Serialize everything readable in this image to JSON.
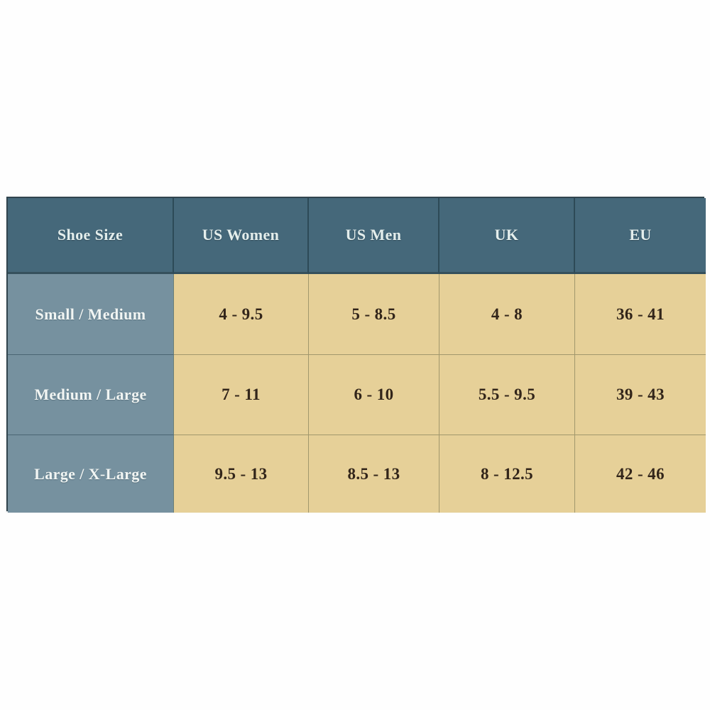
{
  "table": {
    "columns": [
      "Shoe Size",
      "US Women",
      "US Men",
      "UK",
      "EU"
    ],
    "rows": [
      {
        "label": "Small / Medium",
        "values": [
          "4 - 9.5",
          "5 - 8.5",
          "4 - 8",
          "36 - 41"
        ]
      },
      {
        "label": "Medium / Large",
        "values": [
          "7 - 11",
          "6 - 10",
          "5.5 - 9.5",
          "39 - 43"
        ]
      },
      {
        "label": "Large / X-Large",
        "values": [
          "9.5 - 13",
          "8.5 - 13",
          "8 - 12.5",
          "42 - 46"
        ]
      }
    ]
  },
  "theme": {
    "header_bg": "#45687a",
    "label_bg": "#76919f",
    "data_bg": "#e6d098",
    "header_text": "#e4eeec",
    "label_text": "#f1f5f3",
    "data_text": "#32251a",
    "page_bg": "#fefefe"
  },
  "chart_data": {
    "type": "table",
    "columns": [
      "Shoe Size",
      "US Women",
      "US Men",
      "UK",
      "EU"
    ],
    "rows": [
      [
        "Small / Medium",
        "4 - 9.5",
        "5 - 8.5",
        "4 - 8",
        "36 - 41"
      ],
      [
        "Medium / Large",
        "7 - 11",
        "6 - 10",
        "5.5 - 9.5",
        "39 - 43"
      ],
      [
        "Large / X-Large",
        "9.5 - 13",
        "8.5 - 13",
        "8 - 12.5",
        "42 - 46"
      ]
    ],
    "layout": {
      "grid": "on",
      "header_row": true,
      "label_column": true
    }
  }
}
